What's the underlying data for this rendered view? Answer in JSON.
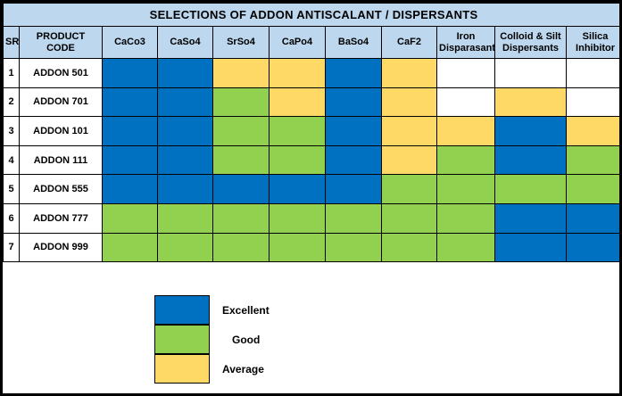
{
  "title": "SELECTIONS OF ADDON ANTISCALANT / DISPERSANTS",
  "colors": {
    "excellent": "#0070C0",
    "good": "#92D050",
    "average": "#FFD966",
    "blank": "#FFFFFF",
    "header_bg": "#BDD7EE",
    "border": "#000000"
  },
  "table": {
    "columns": [
      "SR",
      "PRODUCT CODE",
      "CaCo3",
      "CaSo4",
      "SrSo4",
      "CaPo4",
      "BaSo4",
      "CaF2",
      "Iron Disparasant",
      "Colloid & Silt Dispersants",
      "Silica Inhibitor"
    ],
    "rows": [
      {
        "sr": "1",
        "product": "ADDON 501",
        "ratings": [
          "excellent",
          "excellent",
          "average",
          "average",
          "excellent",
          "average",
          "blank",
          "blank",
          "blank"
        ]
      },
      {
        "sr": "2",
        "product": "ADDON 701",
        "ratings": [
          "excellent",
          "excellent",
          "good",
          "average",
          "excellent",
          "average",
          "blank",
          "average",
          "blank"
        ]
      },
      {
        "sr": "3",
        "product": "ADDON 101",
        "ratings": [
          "excellent",
          "excellent",
          "good",
          "good",
          "excellent",
          "average",
          "average",
          "excellent",
          "average"
        ]
      },
      {
        "sr": "4",
        "product": "ADDON 111",
        "ratings": [
          "excellent",
          "excellent",
          "good",
          "good",
          "excellent",
          "average",
          "good",
          "excellent",
          "good"
        ]
      },
      {
        "sr": "5",
        "product": "ADDON 555",
        "ratings": [
          "excellent",
          "excellent",
          "excellent",
          "excellent",
          "excellent",
          "good",
          "good",
          "good",
          "good"
        ]
      },
      {
        "sr": "6",
        "product": "ADDON 777",
        "ratings": [
          "good",
          "good",
          "good",
          "good",
          "good",
          "good",
          "good",
          "excellent",
          "excellent"
        ]
      },
      {
        "sr": "7",
        "product": "ADDON 999",
        "ratings": [
          "good",
          "good",
          "good",
          "good",
          "good",
          "good",
          "good",
          "excellent",
          "excellent"
        ]
      }
    ]
  },
  "legend": [
    {
      "label": "Excellent",
      "color_key": "excellent"
    },
    {
      "label": "Good",
      "color_key": "good"
    },
    {
      "label": "Average",
      "color_key": "average"
    }
  ],
  "chart_data": {
    "type": "table",
    "title": "SELECTIONS OF ADDON ANTISCALANT / DISPERSANTS",
    "columns": [
      "CaCo3",
      "CaSo4",
      "SrSo4",
      "CaPo4",
      "BaSo4",
      "CaF2",
      "Iron Disparasant",
      "Colloid & Silt Dispersants",
      "Silica Inhibitor"
    ],
    "rows": [
      "ADDON 501",
      "ADDON 701",
      "ADDON 101",
      "ADDON 111",
      "ADDON 555",
      "ADDON 777",
      "ADDON 999"
    ],
    "values": [
      [
        "Excellent",
        "Excellent",
        "Average",
        "Average",
        "Excellent",
        "Average",
        "",
        "",
        ""
      ],
      [
        "Excellent",
        "Excellent",
        "Good",
        "Average",
        "Excellent",
        "Average",
        "",
        "Average",
        ""
      ],
      [
        "Excellent",
        "Excellent",
        "Good",
        "Good",
        "Excellent",
        "Average",
        "Average",
        "Excellent",
        "Average"
      ],
      [
        "Excellent",
        "Excellent",
        "Good",
        "Good",
        "Excellent",
        "Average",
        "Good",
        "Excellent",
        "Good"
      ],
      [
        "Excellent",
        "Excellent",
        "Excellent",
        "Excellent",
        "Excellent",
        "Good",
        "Good",
        "Good",
        "Good"
      ],
      [
        "Good",
        "Good",
        "Good",
        "Good",
        "Good",
        "Good",
        "Good",
        "Excellent",
        "Excellent"
      ],
      [
        "Good",
        "Good",
        "Good",
        "Good",
        "Good",
        "Good",
        "Good",
        "Excellent",
        "Excellent"
      ]
    ],
    "legend": [
      {
        "label": "Excellent",
        "color": "#0070C0"
      },
      {
        "label": "Good",
        "color": "#92D050"
      },
      {
        "label": "Average",
        "color": "#FFD966"
      }
    ],
    "legend_position": "bottom-left"
  }
}
